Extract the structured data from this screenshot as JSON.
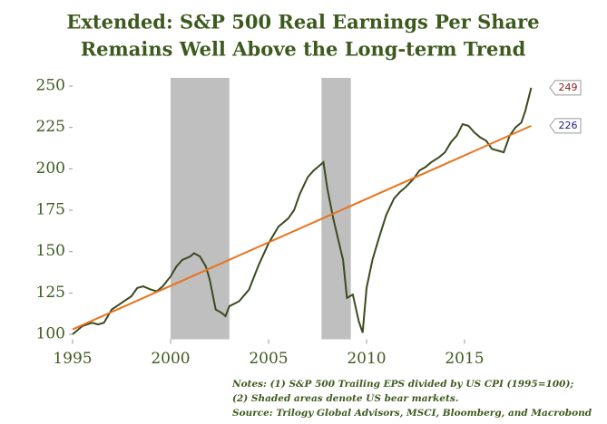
{
  "chart_data": {
    "type": "line",
    "title": [
      "Extended: S&P 500 Real Earnings Per Share",
      "Remains Well Above the Long-term Trend"
    ],
    "xlim": [
      1995,
      2019
    ],
    "xticks": [
      1995,
      2000,
      2005,
      2010,
      2015
    ],
    "ylim": [
      97,
      255
    ],
    "yticks": [
      100,
      125,
      150,
      175,
      200,
      225,
      250
    ],
    "shaded_ranges": [
      [
        2000,
        2003
      ],
      [
        2007.7,
        2009.2
      ]
    ],
    "shade_color": "#bfbfbf",
    "series": [
      {
        "name": "S&P 500 Real EPS",
        "color": "#3b4a1e",
        "label_color": "#8b1a1a",
        "end_label": 249,
        "x": [
          1995.0,
          1995.5,
          1996.0,
          1996.3,
          1996.6,
          1997.0,
          1997.5,
          1998.0,
          1998.3,
          1998.6,
          1999.0,
          1999.3,
          1999.6,
          2000.0,
          2000.3,
          2000.6,
          2001.0,
          2001.2,
          2001.5,
          2001.8,
          2002.0,
          2002.3,
          2002.6,
          2002.8,
          2003.0,
          2003.5,
          2004.0,
          2004.5,
          2005.0,
          2005.5,
          2006.0,
          2006.3,
          2006.6,
          2007.0,
          2007.3,
          2007.6,
          2007.8,
          2008.0,
          2008.3,
          2008.6,
          2008.8,
          2009.0,
          2009.3,
          2009.6,
          2009.8,
          2010.0,
          2010.3,
          2010.6,
          2011.0,
          2011.4,
          2011.7,
          2012.0,
          2012.4,
          2012.7,
          2013.0,
          2013.3,
          2013.7,
          2014.0,
          2014.3,
          2014.6,
          2014.9,
          2015.2,
          2015.5,
          2015.8,
          2016.1,
          2016.4,
          2016.7,
          2017.0,
          2017.3,
          2017.6,
          2017.9,
          2018.1,
          2018.4
        ],
        "values": [
          100,
          105,
          107,
          106,
          107,
          115,
          119,
          123,
          128,
          129,
          127,
          126,
          129,
          135,
          141,
          145,
          147,
          149,
          147,
          141,
          133,
          115,
          113,
          111,
          117,
          120,
          127,
          142,
          155,
          165,
          170,
          175,
          185,
          195,
          199,
          202,
          204,
          188,
          170,
          155,
          145,
          122,
          124,
          108,
          101,
          128,
          145,
          157,
          172,
          182,
          186,
          189,
          194,
          199,
          201,
          204,
          207,
          210,
          216,
          220,
          227,
          226,
          222,
          219,
          217,
          212,
          211,
          210,
          220,
          225,
          228,
          235,
          249
        ]
      },
      {
        "name": "Long-term Trend",
        "color": "#e8731c",
        "label_color": "#1a237e",
        "end_label": 226,
        "x": [
          1995,
          2018.4
        ],
        "values": [
          103,
          226
        ]
      }
    ],
    "notes": [
      "Notes: (1) S&P 500 Trailing EPS divided by US CPI (1995=100);",
      "(2) Shaded areas denote US bear markets.",
      "Source: Trilogy Global Advisors, MSCI, Bloomberg, and Macrobond"
    ],
    "text_color": "#3d5a1e"
  }
}
